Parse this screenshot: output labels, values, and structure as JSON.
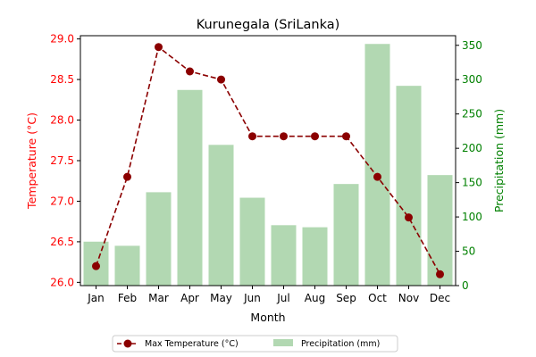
{
  "chart_data": {
    "type": "bar+line",
    "title": "Kurunegala (SriLanka)",
    "xlabel": "Month",
    "categories": [
      "Jan",
      "Feb",
      "Mar",
      "Apr",
      "May",
      "Jun",
      "Jul",
      "Aug",
      "Sep",
      "Oct",
      "Nov",
      "Dec"
    ],
    "left_axis": {
      "label": "Temperature (°C)",
      "color": "#ff0000",
      "ylim": [
        25.96,
        29.04
      ],
      "ticks": [
        "26.0",
        "26.5",
        "27.0",
        "27.5",
        "28.0",
        "28.5",
        "29.0"
      ]
    },
    "right_axis": {
      "label": "Precipitation (mm)",
      "color": "#008000",
      "ylim": [
        0,
        364
      ],
      "ticks": [
        "0",
        "50",
        "100",
        "150",
        "200",
        "250",
        "300",
        "350"
      ]
    },
    "series": [
      {
        "name": "Max Temperature (°C)",
        "kind": "line",
        "axis": "left",
        "color": "#8b0000",
        "values": [
          26.2,
          27.3,
          28.9,
          28.6,
          28.5,
          27.8,
          27.8,
          27.8,
          27.8,
          27.3,
          26.8,
          26.1
        ]
      },
      {
        "name": "Precipitation (mm)",
        "kind": "bar",
        "axis": "right",
        "color": "#b2d8b2",
        "values": [
          64,
          58,
          136,
          285,
          205,
          128,
          88,
          85,
          148,
          352,
          291,
          161
        ]
      }
    ],
    "legend": "bottom-center",
    "grid": false
  }
}
